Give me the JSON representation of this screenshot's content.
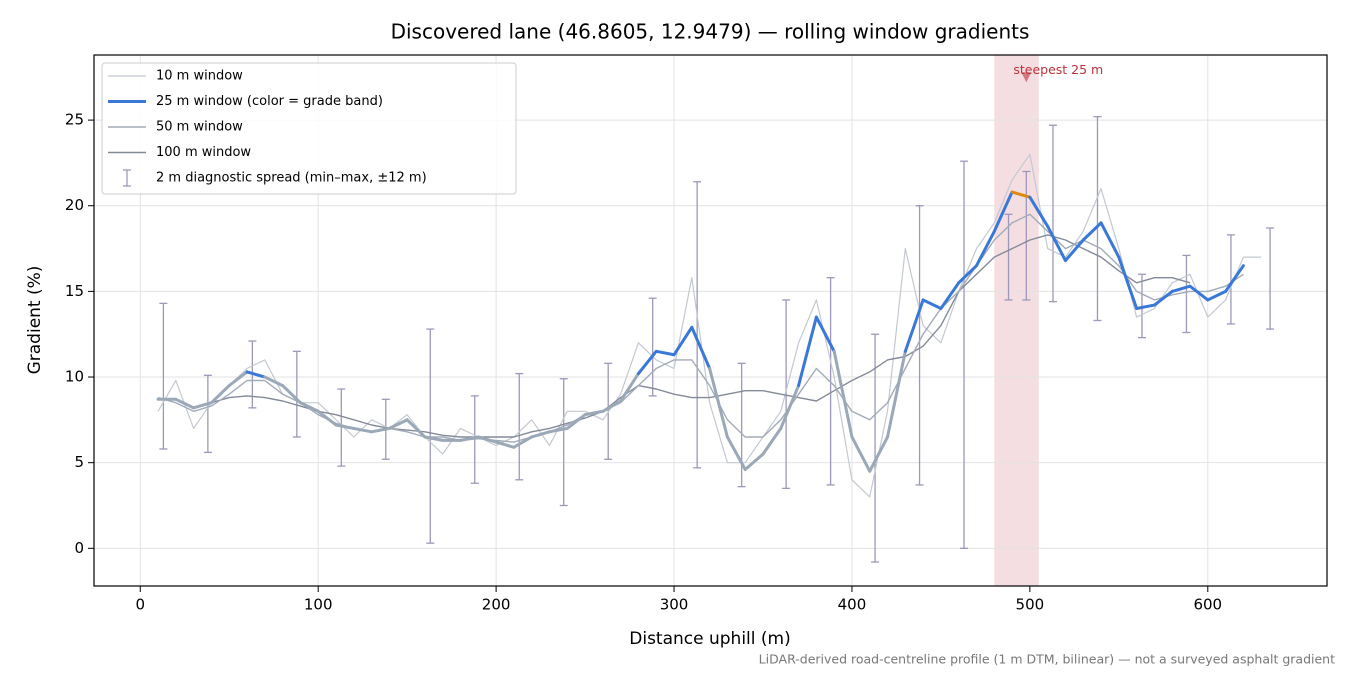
{
  "chart_data": {
    "type": "line",
    "title": "Discovered lane (46.8605, 12.9479) — rolling window gradients",
    "xlabel": "Distance uphill (m)",
    "ylabel": "Gradient (%)",
    "footnote": "LiDAR-derived road-centreline profile (1 m DTM, bilinear) — not a surveyed asphalt gradient",
    "x": [
      10,
      20,
      30,
      40,
      50,
      60,
      70,
      80,
      90,
      100,
      110,
      120,
      130,
      140,
      150,
      160,
      170,
      180,
      190,
      200,
      210,
      220,
      230,
      240,
      250,
      260,
      270,
      280,
      290,
      300,
      310,
      320,
      330,
      340,
      350,
      360,
      370,
      380,
      390,
      400,
      410,
      420,
      430,
      440,
      450,
      460,
      470,
      480,
      490,
      500,
      510,
      520,
      530,
      540,
      550,
      560,
      570,
      580,
      590,
      600,
      610,
      620,
      630
    ],
    "series": [
      {
        "name": "10 m window",
        "color": "#c3c8d2",
        "linewidth": 1.2,
        "values": [
          8.0,
          9.8,
          7.0,
          8.5,
          9.5,
          10.5,
          11.0,
          9.0,
          8.5,
          8.5,
          7.5,
          6.5,
          7.5,
          7.0,
          7.8,
          6.5,
          5.5,
          7.0,
          6.5,
          6.0,
          6.5,
          7.5,
          6.0,
          8.0,
          8.0,
          7.5,
          9.0,
          12.0,
          11.0,
          10.5,
          15.8,
          8.5,
          5.0,
          5.0,
          6.5,
          8.0,
          12.0,
          14.5,
          10.0,
          4.0,
          3.0,
          8.0,
          17.5,
          13.0,
          12.0,
          15.0,
          17.5,
          19.0,
          21.5,
          23.0,
          17.5,
          17.0,
          18.5,
          21.0,
          17.5,
          13.5,
          14.0,
          15.5,
          16.0,
          13.5,
          14.5,
          17.0,
          17.0
        ]
      },
      {
        "name": "25 m window (color = grade band)",
        "color": "#3a78d8",
        "linewidth": 3,
        "band_limits": [
          10,
          20
        ],
        "band_colors": [
          "#9aa8b7",
          "#3a78d8",
          "#dd8a12"
        ],
        "values": [
          8.7,
          8.7,
          8.2,
          8.5,
          9.5,
          10.3,
          10.0,
          9.5,
          8.5,
          8.0,
          7.2,
          7.0,
          6.8,
          7.0,
          7.5,
          6.5,
          6.3,
          6.3,
          6.5,
          6.2,
          5.9,
          6.5,
          6.8,
          7.0,
          7.8,
          8.0,
          8.6,
          10.2,
          11.5,
          11.3,
          12.9,
          10.5,
          6.5,
          4.6,
          5.5,
          7.0,
          9.5,
          13.5,
          11.5,
          6.5,
          4.5,
          6.5,
          11.5,
          14.5,
          14.0,
          15.5,
          16.5,
          18.5,
          20.8,
          20.5,
          18.8,
          16.8,
          18.0,
          19.0,
          17.0,
          14.0,
          14.2,
          15.0,
          15.3,
          14.5,
          15.0,
          16.5,
          null
        ]
      },
      {
        "name": "50 m window",
        "color": "#a2abb9",
        "linewidth": 1.4,
        "values": [
          8.8,
          8.5,
          8.0,
          8.3,
          9.0,
          9.8,
          9.8,
          9.0,
          8.5,
          7.8,
          7.3,
          7.0,
          6.8,
          7.0,
          6.8,
          6.5,
          6.5,
          6.3,
          6.4,
          6.3,
          6.2,
          6.5,
          6.8,
          7.2,
          7.8,
          8.0,
          8.5,
          9.5,
          10.5,
          11.0,
          11.0,
          9.5,
          7.5,
          6.5,
          6.5,
          7.5,
          9.0,
          10.5,
          9.5,
          8.0,
          7.5,
          8.5,
          10.5,
          12.5,
          14.0,
          15.0,
          16.5,
          18.0,
          19.0,
          19.5,
          18.5,
          17.5,
          18.0,
          17.5,
          16.5,
          15.0,
          14.5,
          14.8,
          15.0,
          15.0,
          15.3,
          16.0,
          null
        ]
      },
      {
        "name": "100 m window",
        "color": "#848a98",
        "linewidth": 1.4,
        "values": [
          null,
          null,
          null,
          8.5,
          8.8,
          8.9,
          8.8,
          8.6,
          8.3,
          8.0,
          7.8,
          7.5,
          7.2,
          7.0,
          6.9,
          6.8,
          6.6,
          6.5,
          6.5,
          6.5,
          6.5,
          6.8,
          7.0,
          7.3,
          7.6,
          8.0,
          8.8,
          9.5,
          9.3,
          9.0,
          8.8,
          8.8,
          9.0,
          9.2,
          9.2,
          9.0,
          8.8,
          8.6,
          9.2,
          9.8,
          10.3,
          11.0,
          11.2,
          11.8,
          13.0,
          15.0,
          16.0,
          17.0,
          17.5,
          18.0,
          18.3,
          18.0,
          17.5,
          17.0,
          16.2,
          15.5,
          15.8,
          15.8,
          15.5,
          null,
          null,
          null,
          null
        ]
      }
    ],
    "errorbars": {
      "name": "2 m diagnostic spread (min–max, ±12 m)",
      "color": "#9d97ba",
      "x": [
        13,
        38,
        63,
        88,
        113,
        138,
        163,
        188,
        213,
        238,
        263,
        288,
        313,
        338,
        363,
        388,
        413,
        438,
        463,
        488,
        498,
        513,
        538,
        563,
        588,
        613,
        635
      ],
      "low": [
        5.8,
        5.6,
        8.2,
        6.5,
        4.8,
        5.2,
        0.3,
        3.8,
        4.0,
        2.5,
        5.2,
        8.9,
        4.7,
        3.6,
        3.5,
        3.7,
        -0.8,
        3.7,
        0.0,
        14.5,
        14.5,
        14.4,
        13.3,
        12.3,
        12.6,
        13.1,
        12.8
      ],
      "high": [
        14.3,
        10.1,
        12.1,
        11.5,
        9.3,
        8.7,
        12.8,
        8.9,
        10.2,
        9.9,
        10.8,
        14.6,
        21.4,
        10.8,
        14.5,
        15.8,
        12.5,
        20.0,
        22.6,
        19.5,
        22.0,
        24.7,
        25.2,
        16.0,
        17.1,
        18.3,
        18.7
      ]
    },
    "highlight": {
      "xlim": [
        480,
        505
      ],
      "color": "#e9b6bd"
    },
    "annotation": {
      "text": "steepest 25 m",
      "x": 498,
      "y": 27.5,
      "color": "#c0303a"
    },
    "xlim": [
      -26,
      667
    ],
    "ylim": [
      -2.2,
      28.8
    ],
    "xticks": [
      0,
      100,
      200,
      300,
      400,
      500,
      600
    ],
    "yticks": [
      0,
      5,
      10,
      15,
      20,
      25
    ],
    "grid": true,
    "legend": "upper left"
  }
}
